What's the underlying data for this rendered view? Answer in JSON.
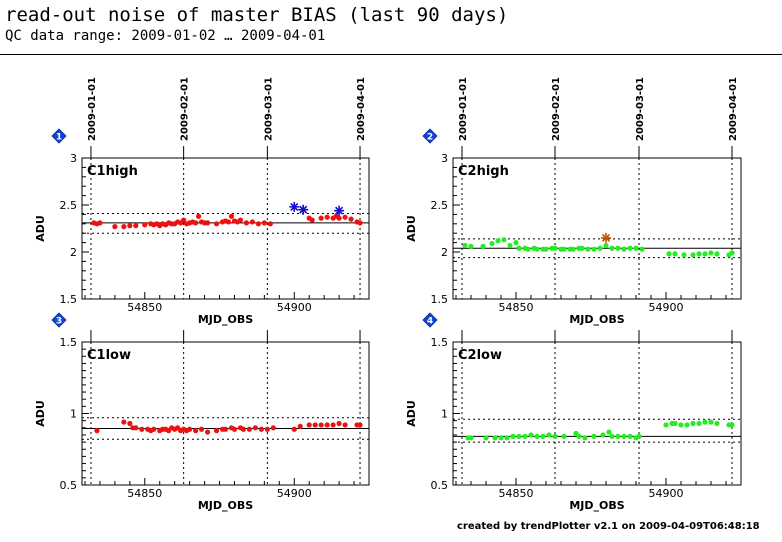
{
  "header": {
    "title": "read-out noise of master BIAS (last 90 days)",
    "subtitle": "QC data range: 2009-01-02 … 2009-04-01"
  },
  "footer": {
    "text": "created by trendPlotter v2.1 on 2009-04-09T06:48:18"
  },
  "chart_data": [
    {
      "type": "scatter",
      "badge": "1",
      "panel_label": "C1high",
      "xlabel": "MJD_OBS",
      "ylabel": "ADU",
      "xlim": [
        54829,
        54925
      ],
      "ylim": [
        1.5,
        3
      ],
      "x_ticks": [
        54850,
        54900
      ],
      "y_ticks": [
        1.5,
        2,
        2.5,
        3
      ],
      "y_tick_labels": [
        "1.5",
        "2",
        "2.5",
        "3"
      ],
      "top_date_ticks": [
        {
          "label": "2009-01-01",
          "mjd": 54832
        },
        {
          "label": "2009-02-01",
          "mjd": 54863
        },
        {
          "label": "2009-03-01",
          "mjd": 54891
        },
        {
          "label": "2009-04-01",
          "mjd": 54922
        }
      ],
      "median": 2.31,
      "band": [
        2.2,
        2.41
      ],
      "color": "#ee1111",
      "points": [
        [
          54833,
          2.31
        ],
        [
          54834,
          2.3
        ],
        [
          54835,
          2.31
        ],
        [
          54840,
          2.27
        ],
        [
          54843,
          2.27
        ],
        [
          54845,
          2.28
        ],
        [
          54847,
          2.28
        ],
        [
          54850,
          2.29
        ],
        [
          54852,
          2.3
        ],
        [
          54853,
          2.29
        ],
        [
          54854,
          2.3
        ],
        [
          54855,
          2.28
        ],
        [
          54856,
          2.3
        ],
        [
          54857,
          2.29
        ],
        [
          54858,
          2.31
        ],
        [
          54859,
          2.3
        ],
        [
          54860,
          2.3
        ],
        [
          54861,
          2.32
        ],
        [
          54862,
          2.31
        ],
        [
          54863,
          2.34
        ],
        [
          54864,
          2.3
        ],
        [
          54865,
          2.31
        ],
        [
          54866,
          2.32
        ],
        [
          54867,
          2.31
        ],
        [
          54868,
          2.38
        ],
        [
          54869,
          2.32
        ],
        [
          54870,
          2.31
        ],
        [
          54871,
          2.31
        ],
        [
          54874,
          2.3
        ],
        [
          54876,
          2.32
        ],
        [
          54877,
          2.33
        ],
        [
          54878,
          2.32
        ],
        [
          54879,
          2.38
        ],
        [
          54880,
          2.33
        ],
        [
          54881,
          2.32
        ],
        [
          54882,
          2.34
        ],
        [
          54884,
          2.31
        ],
        [
          54886,
          2.32
        ],
        [
          54888,
          2.3
        ],
        [
          54890,
          2.31
        ],
        [
          54892,
          2.3
        ],
        [
          54905,
          2.36
        ],
        [
          54906,
          2.34
        ],
        [
          54909,
          2.36
        ],
        [
          54911,
          2.37
        ],
        [
          54913,
          2.36
        ],
        [
          54914,
          2.38
        ],
        [
          54915,
          2.36
        ],
        [
          54917,
          2.37
        ],
        [
          54919,
          2.35
        ],
        [
          54921,
          2.32
        ],
        [
          54922,
          2.31
        ]
      ],
      "outliers": [
        {
          "x": 54900,
          "y": 2.48,
          "color": "#1111cc"
        },
        {
          "x": 54903,
          "y": 2.45,
          "color": "#1111cc"
        },
        {
          "x": 54915,
          "y": 2.44,
          "color": "#1111cc"
        }
      ]
    },
    {
      "type": "scatter",
      "badge": "2",
      "panel_label": "C2high",
      "xlabel": "MJD_OBS",
      "ylabel": "ADU",
      "xlim": [
        54829,
        54925
      ],
      "ylim": [
        1.5,
        3
      ],
      "x_ticks": [
        54850,
        54900
      ],
      "y_ticks": [
        1.5,
        2,
        2.5,
        3
      ],
      "y_tick_labels": [
        "1.5",
        "2",
        "2.5",
        "3"
      ],
      "top_date_ticks": [
        {
          "label": "2009-01-01",
          "mjd": 54832
        },
        {
          "label": "2009-02-01",
          "mjd": 54863
        },
        {
          "label": "2009-03-01",
          "mjd": 54891
        },
        {
          "label": "2009-04-01",
          "mjd": 54922
        }
      ],
      "median": 2.04,
      "band": [
        1.94,
        2.14
      ],
      "color": "#22ee22",
      "points": [
        [
          54833,
          2.07
        ],
        [
          54835,
          2.06
        ],
        [
          54839,
          2.06
        ],
        [
          54842,
          2.09
        ],
        [
          54844,
          2.12
        ],
        [
          54846,
          2.13
        ],
        [
          54848,
          2.07
        ],
        [
          54850,
          2.1
        ],
        [
          54851,
          2.04
        ],
        [
          54853,
          2.04
        ],
        [
          54854,
          2.03
        ],
        [
          54856,
          2.04
        ],
        [
          54857,
          2.03
        ],
        [
          54859,
          2.03
        ],
        [
          54860,
          2.03
        ],
        [
          54862,
          2.04
        ],
        [
          54863,
          2.04
        ],
        [
          54865,
          2.03
        ],
        [
          54866,
          2.03
        ],
        [
          54868,
          2.03
        ],
        [
          54869,
          2.03
        ],
        [
          54871,
          2.04
        ],
        [
          54872,
          2.04
        ],
        [
          54874,
          2.03
        ],
        [
          54876,
          2.03
        ],
        [
          54878,
          2.04
        ],
        [
          54880,
          2.07
        ],
        [
          54882,
          2.04
        ],
        [
          54884,
          2.04
        ],
        [
          54886,
          2.03
        ],
        [
          54888,
          2.04
        ],
        [
          54890,
          2.04
        ],
        [
          54892,
          2.03
        ],
        [
          54901,
          1.98
        ],
        [
          54903,
          1.98
        ],
        [
          54906,
          1.97
        ],
        [
          54909,
          1.97
        ],
        [
          54911,
          1.98
        ],
        [
          54913,
          1.98
        ],
        [
          54915,
          1.99
        ],
        [
          54917,
          1.98
        ],
        [
          54921,
          1.97
        ],
        [
          54922,
          1.99
        ]
      ],
      "outliers": [
        {
          "x": 54880,
          "y": 2.15,
          "color": "#cc5500"
        }
      ]
    },
    {
      "type": "scatter",
      "badge": "3",
      "panel_label": "C1low",
      "xlabel": "MJD_OBS",
      "ylabel": "ADU",
      "xlim": [
        54829,
        54925
      ],
      "ylim": [
        0.5,
        1.5
      ],
      "x_ticks": [
        54850,
        54900
      ],
      "y_ticks": [
        0.5,
        1,
        1.5
      ],
      "y_tick_labels": [
        "0.5",
        "1",
        "1.5"
      ],
      "top_date_ticks": [
        {
          "label": "",
          "mjd": 54832
        },
        {
          "label": "",
          "mjd": 54863
        },
        {
          "label": "",
          "mjd": 54891
        },
        {
          "label": "",
          "mjd": 54922
        }
      ],
      "median": 0.895,
      "band": [
        0.82,
        0.97
      ],
      "color": "#ee1111",
      "points": [
        [
          54834,
          0.88
        ],
        [
          54843,
          0.94
        ],
        [
          54845,
          0.93
        ],
        [
          54846,
          0.9
        ],
        [
          54847,
          0.9
        ],
        [
          54849,
          0.89
        ],
        [
          54851,
          0.89
        ],
        [
          54852,
          0.88
        ],
        [
          54853,
          0.89
        ],
        [
          54855,
          0.88
        ],
        [
          54856,
          0.89
        ],
        [
          54857,
          0.89
        ],
        [
          54858,
          0.88
        ],
        [
          54859,
          0.9
        ],
        [
          54860,
          0.89
        ],
        [
          54861,
          0.9
        ],
        [
          54862,
          0.88
        ],
        [
          54863,
          0.89
        ],
        [
          54864,
          0.88
        ],
        [
          54865,
          0.89
        ],
        [
          54867,
          0.88
        ],
        [
          54869,
          0.89
        ],
        [
          54871,
          0.87
        ],
        [
          54874,
          0.88
        ],
        [
          54876,
          0.89
        ],
        [
          54877,
          0.89
        ],
        [
          54879,
          0.9
        ],
        [
          54880,
          0.89
        ],
        [
          54882,
          0.9
        ],
        [
          54883,
          0.89
        ],
        [
          54885,
          0.89
        ],
        [
          54887,
          0.9
        ],
        [
          54889,
          0.89
        ],
        [
          54891,
          0.89
        ],
        [
          54893,
          0.9
        ],
        [
          54900,
          0.89
        ],
        [
          54902,
          0.91
        ],
        [
          54905,
          0.92
        ],
        [
          54907,
          0.92
        ],
        [
          54909,
          0.92
        ],
        [
          54911,
          0.92
        ],
        [
          54913,
          0.92
        ],
        [
          54915,
          0.93
        ],
        [
          54917,
          0.92
        ],
        [
          54921,
          0.92
        ],
        [
          54922,
          0.92
        ]
      ],
      "outliers": []
    },
    {
      "type": "scatter",
      "badge": "4",
      "panel_label": "C2low",
      "xlabel": "MJD_OBS",
      "ylabel": "ADU",
      "xlim": [
        54829,
        54925
      ],
      "ylim": [
        0.5,
        1.5
      ],
      "x_ticks": [
        54850,
        54900
      ],
      "y_ticks": [
        0.5,
        1,
        1.5
      ],
      "y_tick_labels": [
        "0.5",
        "1",
        "1.5"
      ],
      "top_date_ticks": [
        {
          "label": "",
          "mjd": 54832
        },
        {
          "label": "",
          "mjd": 54863
        },
        {
          "label": "",
          "mjd": 54891
        },
        {
          "label": "",
          "mjd": 54922
        }
      ],
      "median": 0.84,
      "band": [
        0.8,
        0.96
      ],
      "color": "#22ee22",
      "points": [
        [
          54834,
          0.83
        ],
        [
          54835,
          0.83
        ],
        [
          54840,
          0.83
        ],
        [
          54843,
          0.83
        ],
        [
          54845,
          0.83
        ],
        [
          54847,
          0.83
        ],
        [
          54849,
          0.84
        ],
        [
          54851,
          0.84
        ],
        [
          54853,
          0.84
        ],
        [
          54855,
          0.85
        ],
        [
          54857,
          0.84
        ],
        [
          54859,
          0.84
        ],
        [
          54861,
          0.85
        ],
        [
          54863,
          0.84
        ],
        [
          54866,
          0.84
        ],
        [
          54870,
          0.86
        ],
        [
          54871,
          0.84
        ],
        [
          54873,
          0.83
        ],
        [
          54876,
          0.84
        ],
        [
          54879,
          0.85
        ],
        [
          54881,
          0.87
        ],
        [
          54882,
          0.84
        ],
        [
          54884,
          0.84
        ],
        [
          54886,
          0.84
        ],
        [
          54888,
          0.84
        ],
        [
          54890,
          0.83
        ],
        [
          54891,
          0.84
        ],
        [
          54900,
          0.92
        ],
        [
          54902,
          0.93
        ],
        [
          54903,
          0.93
        ],
        [
          54905,
          0.92
        ],
        [
          54907,
          0.92
        ],
        [
          54909,
          0.93
        ],
        [
          54911,
          0.93
        ],
        [
          54913,
          0.94
        ],
        [
          54915,
          0.94
        ],
        [
          54917,
          0.93
        ],
        [
          54921,
          0.92
        ],
        [
          54922,
          0.92
        ]
      ],
      "outliers": []
    }
  ]
}
